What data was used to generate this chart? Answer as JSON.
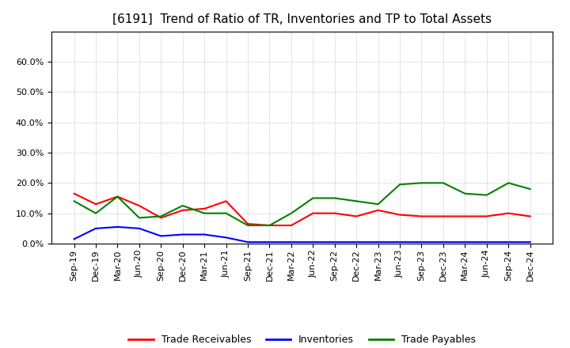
{
  "title": "[6191]  Trend of Ratio of TR, Inventories and TP to Total Assets",
  "x_labels": [
    "Sep-19",
    "Dec-19",
    "Mar-20",
    "Jun-20",
    "Sep-20",
    "Dec-20",
    "Mar-21",
    "Jun-21",
    "Sep-21",
    "Dec-21",
    "Mar-22",
    "Jun-22",
    "Sep-22",
    "Dec-22",
    "Mar-23",
    "Jun-23",
    "Sep-23",
    "Dec-23",
    "Mar-24",
    "Jun-24",
    "Sep-24",
    "Dec-24"
  ],
  "trade_receivables": [
    0.165,
    0.13,
    0.155,
    0.125,
    0.085,
    0.11,
    0.115,
    0.14,
    0.065,
    0.06,
    0.06,
    0.1,
    0.1,
    0.09,
    0.11,
    0.095,
    0.09,
    0.09,
    0.09,
    0.09,
    0.1,
    0.09
  ],
  "inventories": [
    0.015,
    0.05,
    0.055,
    0.05,
    0.025,
    0.03,
    0.03,
    0.02,
    0.005,
    0.005,
    0.005,
    0.005,
    0.005,
    0.005,
    0.005,
    0.005,
    0.005,
    0.005,
    0.005,
    0.005,
    0.005,
    0.005
  ],
  "trade_payables": [
    0.14,
    0.1,
    0.155,
    0.085,
    0.09,
    0.125,
    0.1,
    0.1,
    0.06,
    0.06,
    0.1,
    0.15,
    0.15,
    0.14,
    0.13,
    0.195,
    0.2,
    0.2,
    0.165,
    0.16,
    0.2,
    0.18
  ],
  "line_colors": {
    "trade_receivables": "#ff0000",
    "inventories": "#0000ff",
    "trade_payables": "#008000"
  },
  "ylim": [
    0.0,
    0.7
  ],
  "yticks": [
    0.0,
    0.1,
    0.2,
    0.3,
    0.4,
    0.5,
    0.6
  ],
  "legend_labels": [
    "Trade Receivables",
    "Inventories",
    "Trade Payables"
  ],
  "background_color": "#ffffff",
  "plot_bg_color": "#ffffff",
  "grid_color": "#aaaaaa",
  "title_fontsize": 11,
  "tick_fontsize": 8,
  "legend_fontsize": 9,
  "line_width": 1.5
}
